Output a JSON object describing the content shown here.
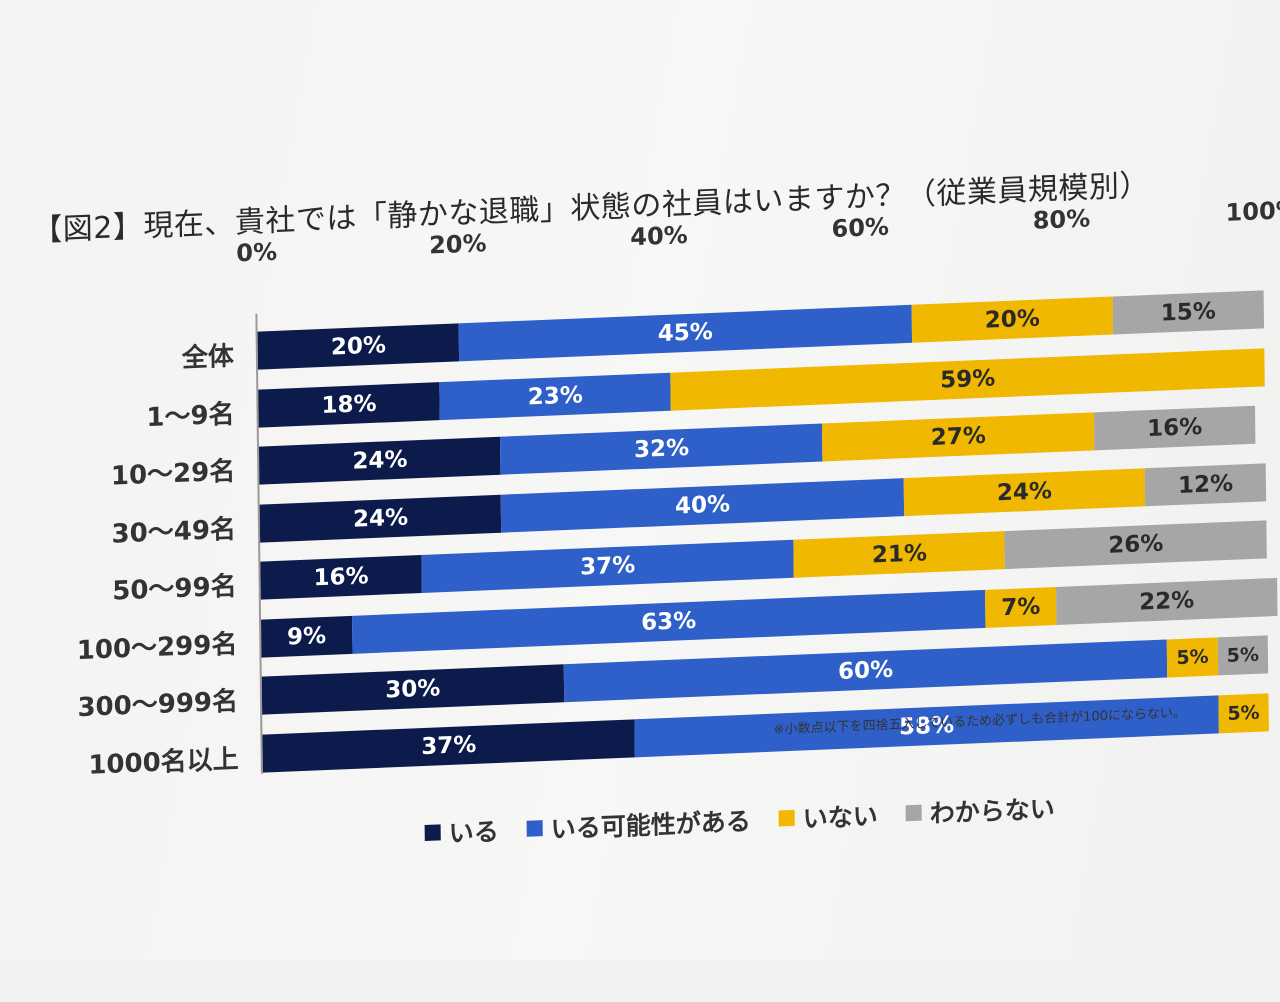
{
  "chart_data": {
    "type": "bar",
    "orientation": "horizontal",
    "stacked": true,
    "title": "【図2】現在、貴社では「静かな退職」状態の社員はいますか？（従業員規模別）",
    "x_ticks": [
      "0%",
      "20%",
      "40%",
      "60%",
      "80%",
      "100%"
    ],
    "xlim": [
      0,
      100
    ],
    "categories": [
      "全体",
      "1～9名",
      "10～29名",
      "30～49名",
      "50～99名",
      "100～299名",
      "300～999名",
      "1000名以上"
    ],
    "series": [
      {
        "name": "いる",
        "color": "#0d1b4c",
        "values": [
          20,
          18,
          24,
          24,
          16,
          9,
          30,
          37
        ],
        "labels": [
          "20%",
          "18%",
          "24%",
          "24%",
          "16%",
          "9%",
          "30%",
          "37%"
        ]
      },
      {
        "name": "いる可能性がある",
        "color": "#2f5fc8",
        "values": [
          45,
          23,
          32,
          40,
          37,
          63,
          60,
          58
        ],
        "labels": [
          "45%",
          "23%",
          "32%",
          "40%",
          "37%",
          "63%",
          "60%",
          "58%"
        ]
      },
      {
        "name": "いない",
        "color": "#f0b800",
        "values": [
          20,
          59,
          27,
          24,
          21,
          7,
          5,
          5
        ],
        "labels": [
          "20%",
          "59%",
          "27%",
          "24%",
          "21%",
          "7%",
          "5%",
          "5%"
        ]
      },
      {
        "name": "わからない",
        "color": "#a6a6a6",
        "values": [
          15,
          0,
          16,
          12,
          26,
          22,
          5,
          0
        ],
        "labels": [
          "15%",
          "",
          "16%",
          "12%",
          "26%",
          "22%",
          "5%",
          ""
        ]
      }
    ],
    "note": "※小数点以下を四捨五入しているため必ずしも合計が100にならない。",
    "legend_position": "bottom",
    "grid": false
  }
}
